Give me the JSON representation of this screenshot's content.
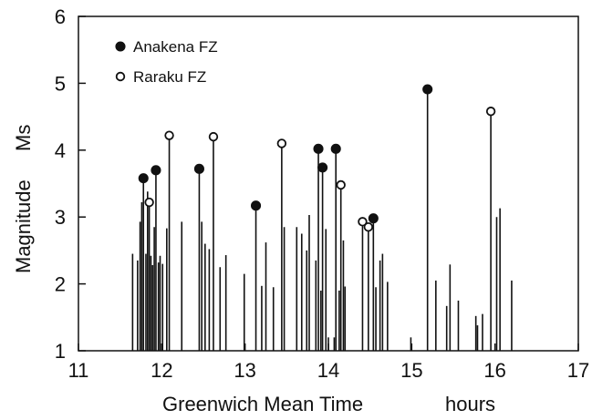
{
  "chart_data": {
    "type": "scatter",
    "title": "",
    "xlabel": "Greenwich Mean Time",
    "xunit": "hours",
    "ylabel": "Magnitude",
    "yunit": "Ms",
    "xlim": [
      11,
      17
    ],
    "ylim": [
      1,
      6
    ],
    "xticks": [
      "11",
      "12",
      "13",
      "14",
      "15",
      "16",
      "17"
    ],
    "yticks": [
      "1",
      "2",
      "3",
      "4",
      "5",
      "6"
    ],
    "grid": false,
    "legend_position": "top-left",
    "series": [
      {
        "name": "Anakena FZ",
        "marker": "filled-circle",
        "color": "#111111",
        "points": [
          {
            "x": 11.78,
            "y": 3.58
          },
          {
            "x": 11.93,
            "y": 3.7
          },
          {
            "x": 12.45,
            "y": 3.72
          },
          {
            "x": 13.13,
            "y": 3.17
          },
          {
            "x": 13.88,
            "y": 4.02
          },
          {
            "x": 13.93,
            "y": 3.74
          },
          {
            "x": 14.09,
            "y": 4.02
          },
          {
            "x": 14.54,
            "y": 2.98
          },
          {
            "x": 15.19,
            "y": 4.91
          }
        ]
      },
      {
        "name": "Raraku FZ",
        "marker": "open-circle",
        "color": "#111111",
        "points": [
          {
            "x": 11.85,
            "y": 3.22
          },
          {
            "x": 12.09,
            "y": 4.22
          },
          {
            "x": 12.62,
            "y": 4.2
          },
          {
            "x": 13.44,
            "y": 4.1
          },
          {
            "x": 14.15,
            "y": 3.48
          },
          {
            "x": 14.41,
            "y": 2.93
          },
          {
            "x": 14.48,
            "y": 2.85
          },
          {
            "x": 15.95,
            "y": 4.58
          }
        ]
      }
    ],
    "unlabeled_events": [
      {
        "x": 11.65,
        "y": 2.45
      },
      {
        "x": 11.71,
        "y": 2.35
      },
      {
        "x": 11.74,
        "y": 2.93
      },
      {
        "x": 11.76,
        "y": 3.22
      },
      {
        "x": 11.81,
        "y": 2.45
      },
      {
        "x": 11.83,
        "y": 3.38
      },
      {
        "x": 11.87,
        "y": 2.42
      },
      {
        "x": 11.89,
        "y": 2.28
      },
      {
        "x": 11.91,
        "y": 2.85
      },
      {
        "x": 11.96,
        "y": 2.32
      },
      {
        "x": 11.98,
        "y": 2.42
      },
      {
        "x": 12.01,
        "y": 2.3
      },
      {
        "x": 12.06,
        "y": 2.83
      },
      {
        "x": 12.24,
        "y": 2.93
      },
      {
        "x": 12.48,
        "y": 2.93
      },
      {
        "x": 12.52,
        "y": 2.6
      },
      {
        "x": 12.57,
        "y": 2.52
      },
      {
        "x": 12.7,
        "y": 2.25
      },
      {
        "x": 12.77,
        "y": 2.43
      },
      {
        "x": 12.99,
        "y": 2.15
      },
      {
        "x": 13.2,
        "y": 1.97
      },
      {
        "x": 13.25,
        "y": 2.62
      },
      {
        "x": 13.34,
        "y": 1.95
      },
      {
        "x": 13.47,
        "y": 2.85
      },
      {
        "x": 13.62,
        "y": 2.85
      },
      {
        "x": 13.68,
        "y": 2.75
      },
      {
        "x": 13.74,
        "y": 2.5
      },
      {
        "x": 13.77,
        "y": 3.03
      },
      {
        "x": 13.85,
        "y": 2.35
      },
      {
        "x": 13.91,
        "y": 1.9
      },
      {
        "x": 13.97,
        "y": 2.82
      },
      {
        "x": 14.0,
        "y": 1.2
      },
      {
        "x": 14.07,
        "y": 1.2
      },
      {
        "x": 14.13,
        "y": 1.9
      },
      {
        "x": 14.18,
        "y": 2.65
      },
      {
        "x": 14.2,
        "y": 1.96
      },
      {
        "x": 14.57,
        "y": 1.95
      },
      {
        "x": 14.62,
        "y": 2.35
      },
      {
        "x": 14.65,
        "y": 2.45
      },
      {
        "x": 14.71,
        "y": 2.03
      },
      {
        "x": 14.99,
        "y": 1.2
      },
      {
        "x": 15.29,
        "y": 2.05
      },
      {
        "x": 15.42,
        "y": 1.67
      },
      {
        "x": 15.46,
        "y": 2.29
      },
      {
        "x": 15.56,
        "y": 1.75
      },
      {
        "x": 15.77,
        "y": 1.52
      },
      {
        "x": 15.79,
        "y": 1.38
      },
      {
        "x": 15.85,
        "y": 1.55
      },
      {
        "x": 16.02,
        "y": 3.0
      },
      {
        "x": 16.06,
        "y": 3.13
      },
      {
        "x": 16.2,
        "y": 2.05
      }
    ]
  }
}
